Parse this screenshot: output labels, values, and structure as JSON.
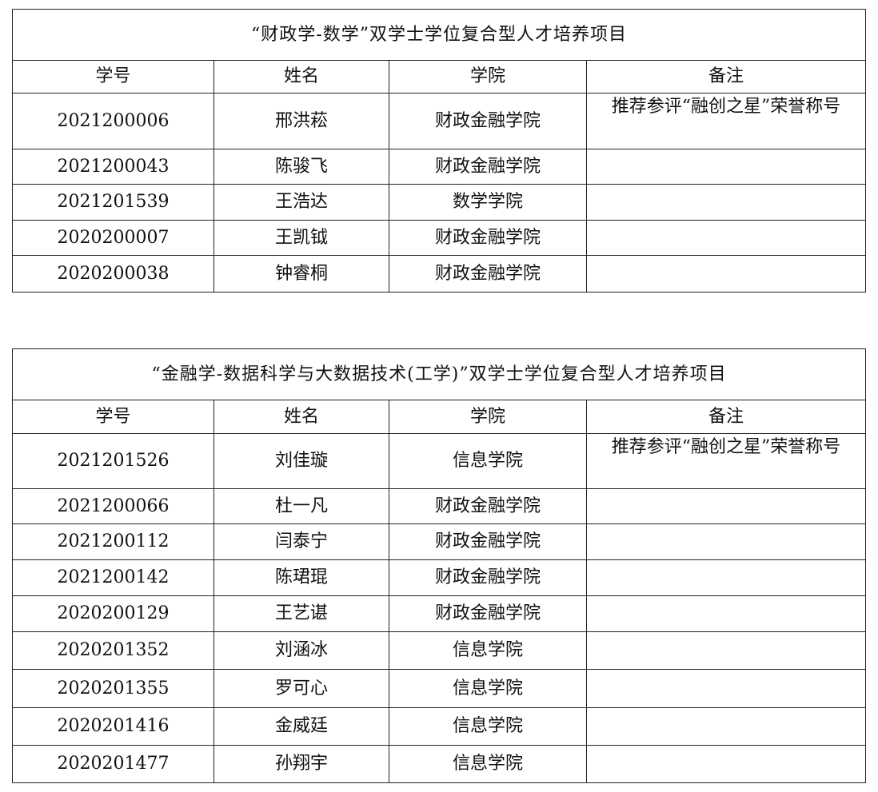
{
  "tables": [
    {
      "title": "“财政学-数学”双学士学位复合型人才培养项目",
      "headers": [
        "学号",
        "姓名",
        "学院",
        "备注"
      ],
      "rows": [
        [
          "2021200006",
          "邢洪菘",
          "财政金融学院",
          "推荐参评“融创之星”荣誉称号"
        ],
        [
          "2021200043",
          "陈骏飞",
          "财政金融学院",
          ""
        ],
        [
          "2021201539",
          "王浩达",
          "数学学院",
          ""
        ],
        [
          "2020200007",
          "王凯钺",
          "财政金融学院",
          ""
        ],
        [
          "2020200038",
          "钟睿桐",
          "财政金融学院",
          ""
        ]
      ]
    },
    {
      "title": "“金融学-数据科学与大数据技术(工学)”双学士学位复合型人才培养项目",
      "headers": [
        "学号",
        "姓名",
        "学院",
        "备注"
      ],
      "rows": [
        [
          "2021201526",
          "刘佳璇",
          "信息学院",
          "推荐参评“融创之星”荣誉称号"
        ],
        [
          "2021200066",
          "杜一凡",
          "财政金融学院",
          ""
        ],
        [
          "2021200112",
          "闫泰宁",
          "财政金融学院",
          ""
        ],
        [
          "2021200142",
          "陈珺琨",
          "财政金融学院",
          ""
        ],
        [
          "2020200129",
          "王艺谌",
          "财政金融学院",
          ""
        ],
        [
          "2020201352",
          "刘涵冰",
          "信息学院",
          ""
        ],
        [
          "2020201355",
          "罗可心",
          "信息学院",
          ""
        ],
        [
          "2020201416",
          "金威廷",
          "信息学院",
          ""
        ],
        [
          "2020201477",
          "孙翔宇",
          "信息学院",
          ""
        ]
      ]
    }
  ]
}
